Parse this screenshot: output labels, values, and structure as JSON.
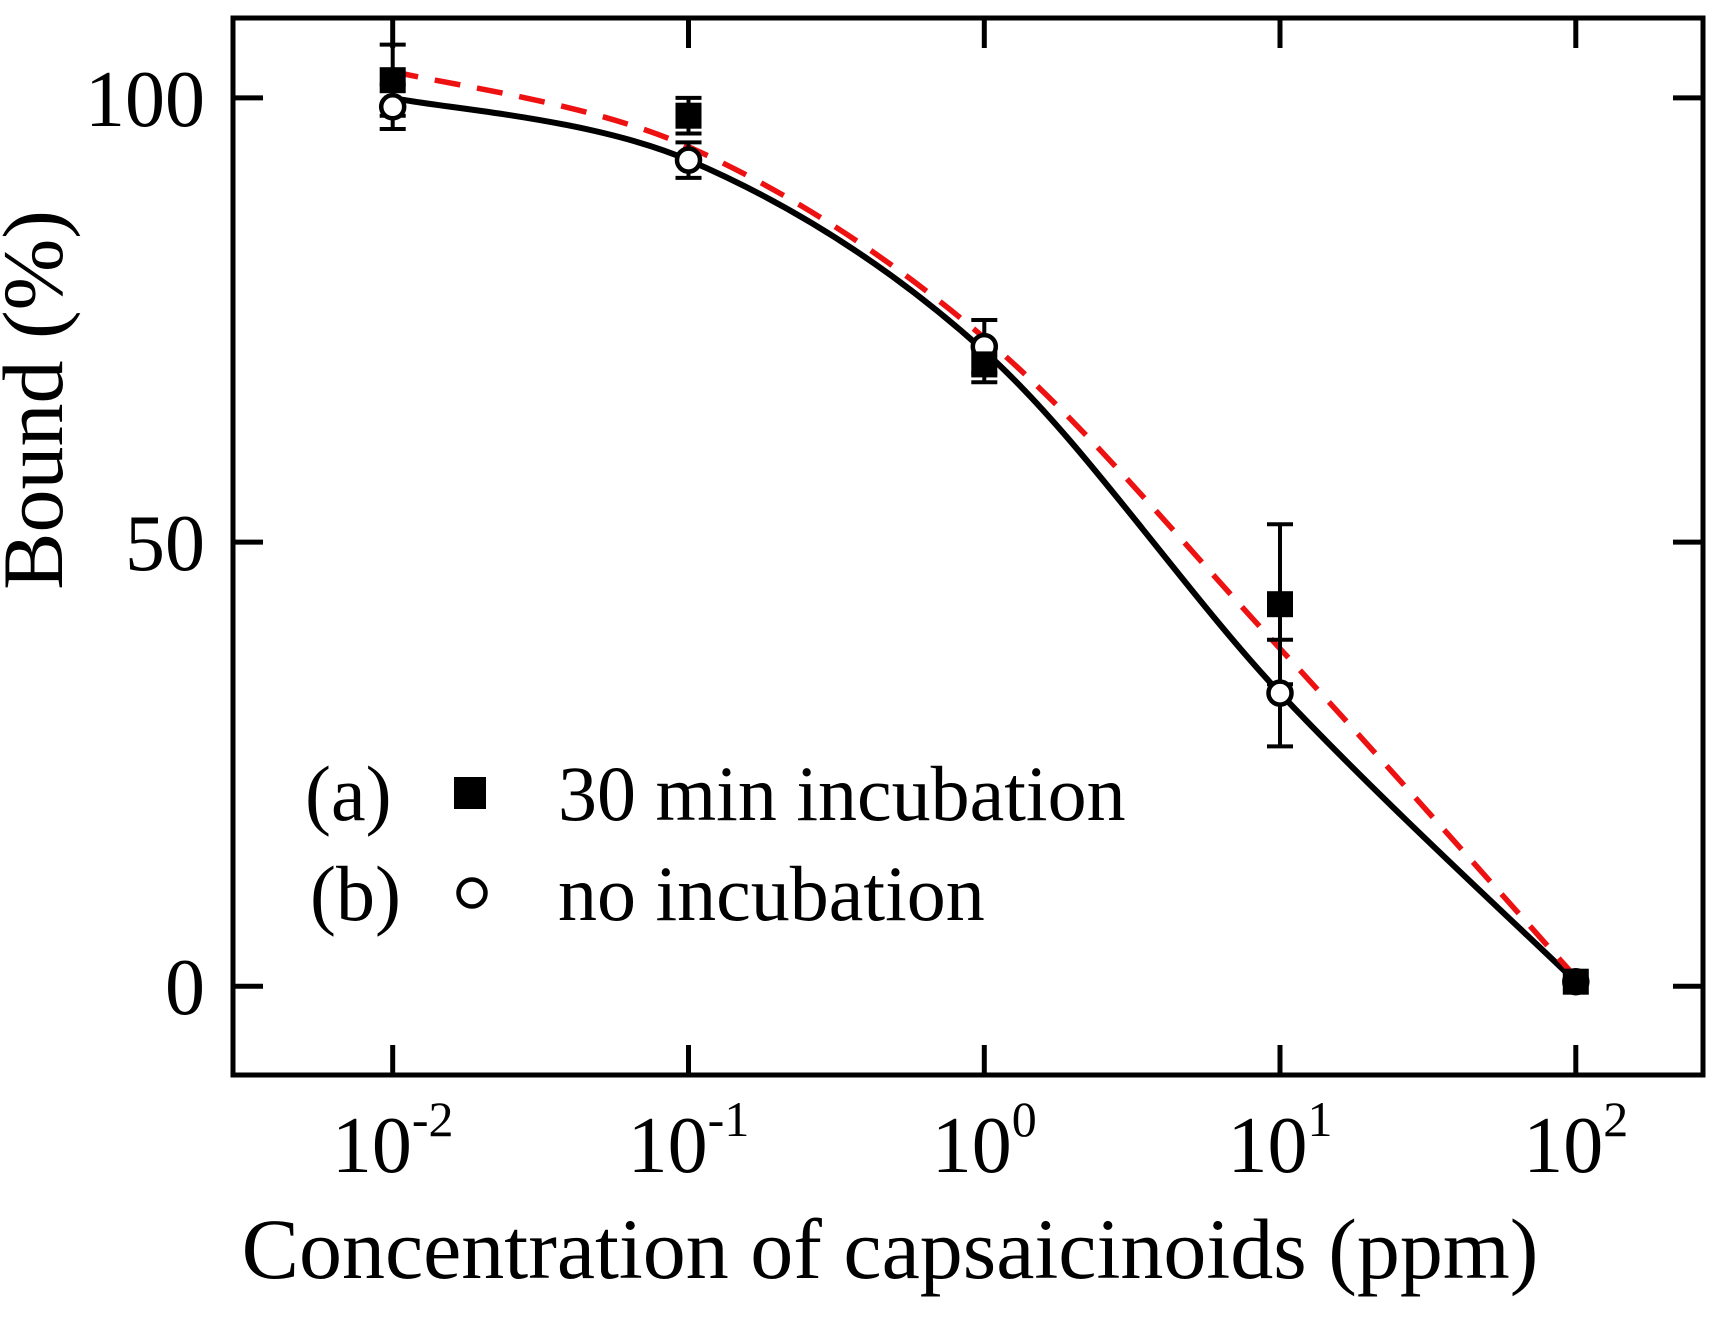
{
  "figure": {
    "background": "#ffffff",
    "frame_color": "#000000"
  },
  "chart_data": {
    "type": "scatter",
    "title": "",
    "xlabel": "Concentration of capsaicinoids (ppm)",
    "ylabel": "Bound (%)",
    "x_scale": "log10",
    "x_tick_base": "10",
    "x_tick_exponents": [
      -2,
      -1,
      0,
      1,
      2
    ],
    "y_ticks": [
      0,
      50,
      100
    ],
    "xlim_log10": [
      -2.54,
      2.43
    ],
    "ylim": [
      -10,
      109
    ],
    "grid": false,
    "legend_position": "lower-left-inside",
    "series": [
      {
        "id": "b",
        "label": "no incubation",
        "marker": "open-circle",
        "marker_color": "#000000",
        "line_style": "solid",
        "line_color": "#000000",
        "points": [
          {
            "x": 0.01,
            "y": 99,
            "yerr": 2.5
          },
          {
            "x": 0.1,
            "y": 93,
            "yerr": 2
          },
          {
            "x": 1,
            "y": 72,
            "yerr": 3
          },
          {
            "x": 10,
            "y": 33,
            "yerr": 6
          },
          {
            "x": 100,
            "y": 0.5,
            "yerr": 0
          }
        ],
        "fit_curve_log10x_y": [
          [
            -2,
            100
          ],
          [
            -1,
            93
          ],
          [
            0,
            71.5
          ],
          [
            1,
            33
          ],
          [
            2,
            0.5
          ]
        ]
      },
      {
        "id": "a",
        "label": "30 min incubation",
        "marker": "filled-square",
        "marker_color": "#000000",
        "line_style": "dashed",
        "line_color": "#ee1111",
        "points": [
          {
            "x": 0.01,
            "y": 102,
            "yerr": 4
          },
          {
            "x": 0.1,
            "y": 98,
            "yerr": 2
          },
          {
            "x": 1,
            "y": 70,
            "yerr": 2
          },
          {
            "x": 10,
            "y": 43,
            "yerr": 9
          },
          {
            "x": 100,
            "y": 0.5,
            "yerr": 0
          }
        ],
        "fit_curve_log10x_y": [
          [
            -2,
            103
          ],
          [
            -1,
            94.5
          ],
          [
            0,
            73
          ],
          [
            1,
            38
          ],
          [
            2,
            1
          ]
        ]
      }
    ],
    "legend": {
      "items": [
        {
          "tag": "(a)",
          "marker": "filled-square",
          "label": "30 min incubation"
        },
        {
          "tag": "(b)",
          "marker": "open-circle",
          "label": "no incubation"
        }
      ]
    }
  }
}
